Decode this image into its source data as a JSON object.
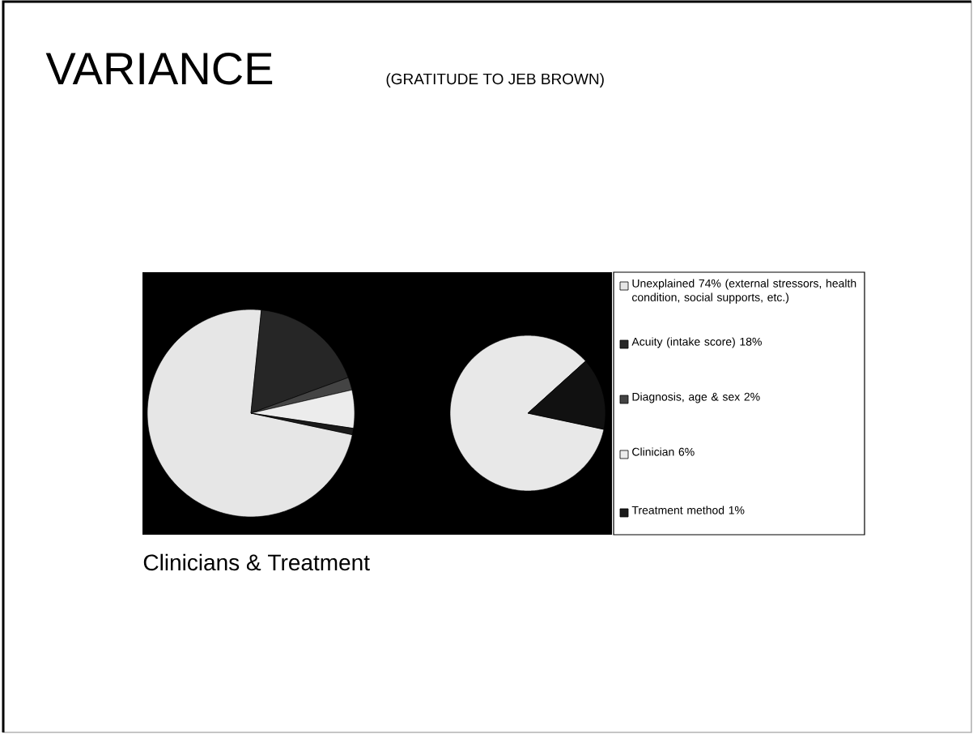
{
  "chart_data": [
    {
      "type": "pie",
      "title": "VARIANCE",
      "annotations": [
        "Clinicians & Treatment"
      ],
      "legend": "right",
      "categories": [
        "Unexplained 74% (external stressors, health condition, social supports, etc.)",
        "Acuity (intake score) 18%",
        "Diagnosis, age & sex 2%",
        "Clinician 6%",
        "Treatment method 1%"
      ],
      "values": [
        74,
        18,
        2,
        6,
        1
      ],
      "colors": [
        "#e6e6e6",
        "#262626",
        "#444444",
        "#ececec",
        "#1a1a1a"
      ]
    },
    {
      "type": "pie",
      "subtitle": "(GRATITUDE TO JEB BROWN)",
      "categories": [
        null,
        null
      ],
      "values": [
        85,
        15
      ],
      "colors": [
        "#e8e8e8",
        "#111111"
      ]
    }
  ]
}
